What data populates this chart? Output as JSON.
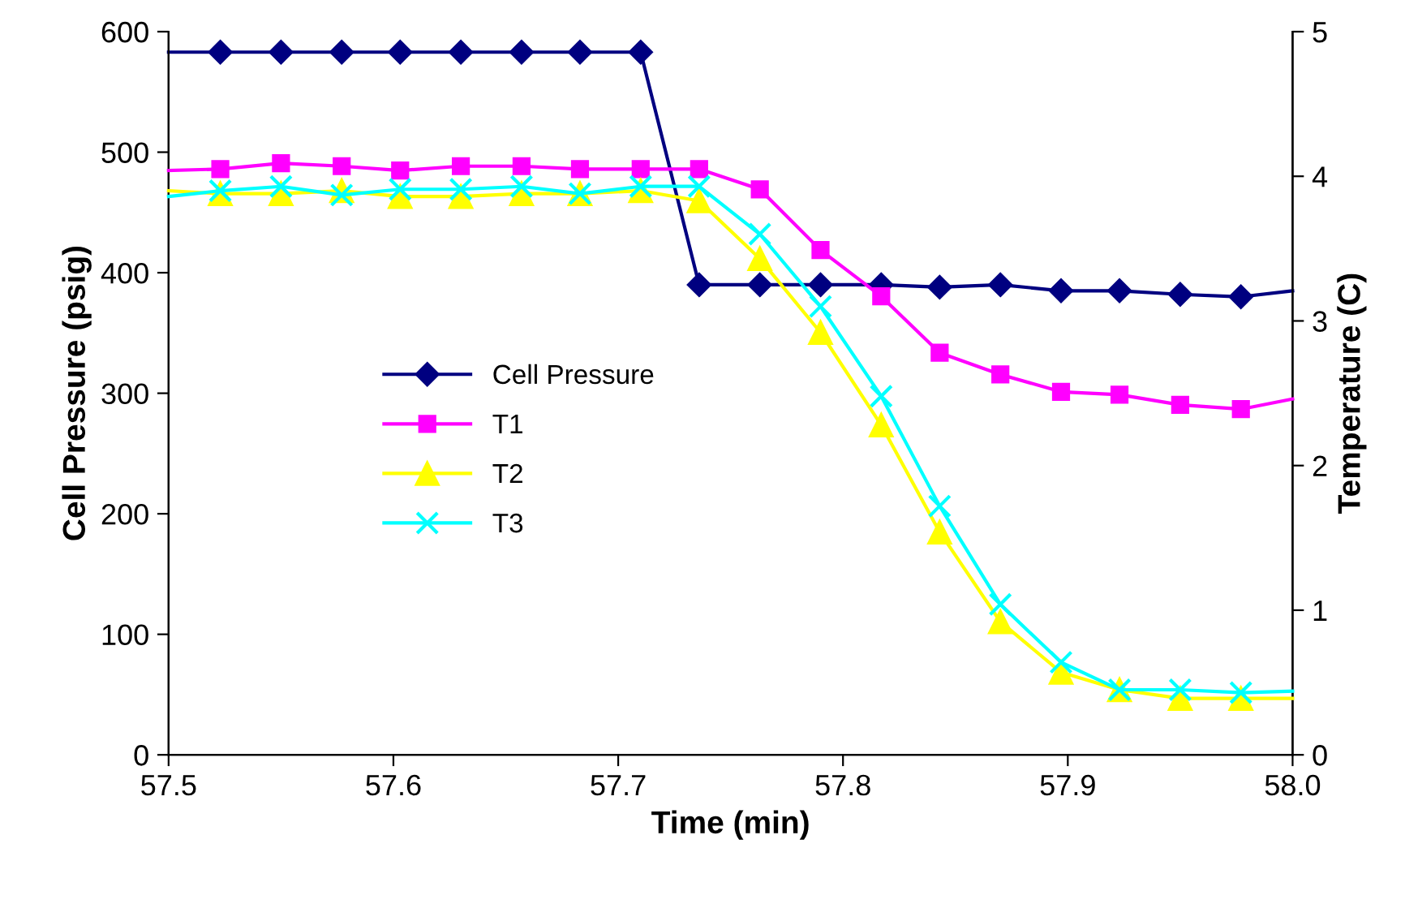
{
  "chart_data": {
    "type": "line",
    "xlabel": "Time (min)",
    "ylabel": "Cell Pressure (psig)",
    "y2label": "Temperature (C)",
    "xlim": [
      57.5,
      58.0
    ],
    "xticks": [
      {
        "value": 57.5,
        "label": "57.5"
      },
      {
        "value": 57.6,
        "label": "57.6"
      },
      {
        "value": 57.7,
        "label": "57.7"
      },
      {
        "value": 57.8,
        "label": "57.8"
      },
      {
        "value": 57.9,
        "label": "57.9"
      },
      {
        "value": 58.0,
        "label": "58.0"
      }
    ],
    "ylim": [
      0,
      600
    ],
    "yticks": [
      0,
      100,
      200,
      300,
      400,
      500,
      600
    ],
    "y2lim": [
      0,
      5
    ],
    "y2ticks": [
      0,
      1,
      2,
      3,
      4,
      5
    ],
    "grid": false,
    "legend": "center",
    "x": [
      57.5,
      57.523,
      57.55,
      57.577,
      57.603,
      57.63,
      57.657,
      57.683,
      57.71,
      57.736,
      57.763,
      57.79,
      57.817,
      57.843,
      57.87,
      57.897,
      57.923,
      57.95,
      57.977,
      58.0
    ],
    "series": [
      {
        "name": "Cell Pressure",
        "color": "#000080",
        "marker": "diamond",
        "values": [
          583,
          583,
          583,
          583,
          583,
          583,
          583,
          583,
          583,
          390,
          390,
          390,
          390,
          388,
          390,
          385,
          385,
          382,
          380,
          385
        ]
      },
      {
        "name": "T1",
        "color": "#ff00ff",
        "marker": "square",
        "axis": "y2",
        "values": [
          4.04,
          4.05,
          4.09,
          4.07,
          4.04,
          4.07,
          4.07,
          4.05,
          4.05,
          4.05,
          3.91,
          3.49,
          3.17,
          2.78,
          2.63,
          2.51,
          2.49,
          2.42,
          2.39,
          2.46
        ]
      },
      {
        "name": "T2",
        "color": "#ffff00",
        "marker": "triangle",
        "axis": "y2",
        "values": [
          3.9,
          3.88,
          3.88,
          3.9,
          3.86,
          3.86,
          3.88,
          3.88,
          3.9,
          3.83,
          3.43,
          2.92,
          2.28,
          1.54,
          0.92,
          0.57,
          0.45,
          0.39,
          0.39,
          0.39
        ]
      },
      {
        "name": "T3",
        "color": "#00ffff",
        "marker": "cross",
        "axis": "y2",
        "values": [
          3.86,
          3.9,
          3.93,
          3.87,
          3.91,
          3.91,
          3.93,
          3.88,
          3.93,
          3.93,
          3.6,
          3.1,
          2.48,
          1.72,
          1.04,
          0.64,
          0.45,
          0.45,
          0.43,
          0.44
        ]
      }
    ]
  }
}
